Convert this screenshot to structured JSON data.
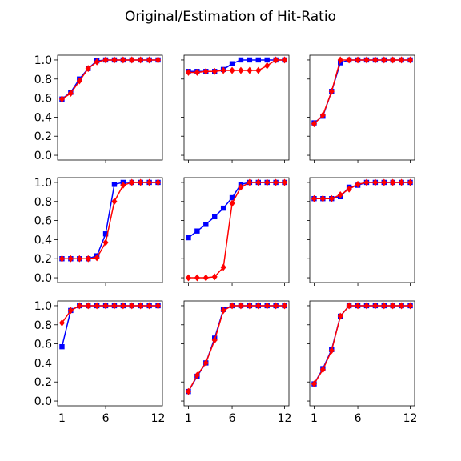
{
  "figure": {
    "title": "Original/Estimation of Hit-Ratio"
  },
  "chart_data": {
    "type": "line",
    "title": "Original/Estimation of Hit-Ratio",
    "x": [
      1,
      2,
      3,
      4,
      5,
      6,
      7,
      8,
      9,
      10,
      11,
      12
    ],
    "xlim": [
      0.5,
      12.5
    ],
    "ylim": [
      -0.05,
      1.05
    ],
    "xticks": [
      1,
      6,
      12
    ],
    "yticks": [
      0.0,
      0.2,
      0.4,
      0.6,
      0.8,
      1.0
    ],
    "ytick_labels": [
      "0.0",
      "0.2",
      "0.4",
      "0.6",
      "0.8",
      "1.0"
    ],
    "grid": false,
    "layout": "3x3 grid, shared axes",
    "series_styles": {
      "original": {
        "color": "#0000ff",
        "marker": "square"
      },
      "estimation": {
        "color": "#ff0000",
        "marker": "diamond"
      }
    },
    "panels": [
      {
        "original": [
          0.59,
          0.66,
          0.8,
          0.91,
          0.99,
          1,
          1,
          1,
          1,
          1,
          1,
          1
        ],
        "estimation": [
          0.59,
          0.65,
          0.78,
          0.91,
          0.98,
          1,
          1,
          1,
          1,
          1,
          1,
          1
        ]
      },
      {
        "original": [
          0.88,
          0.88,
          0.88,
          0.88,
          0.9,
          0.96,
          1,
          1,
          1,
          1,
          1,
          1
        ],
        "estimation": [
          0.87,
          0.87,
          0.88,
          0.88,
          0.89,
          0.89,
          0.89,
          0.89,
          0.89,
          0.94,
          1,
          1
        ]
      },
      {
        "original": [
          0.34,
          0.41,
          0.67,
          0.97,
          1,
          1,
          1,
          1,
          1,
          1,
          1,
          1
        ],
        "estimation": [
          0.33,
          0.42,
          0.67,
          1,
          1,
          1,
          1,
          1,
          1,
          1,
          1,
          1
        ]
      },
      {
        "original": [
          0.2,
          0.2,
          0.2,
          0.2,
          0.23,
          0.46,
          0.98,
          1,
          1,
          1,
          1,
          1
        ],
        "estimation": [
          0.2,
          0.2,
          0.2,
          0.2,
          0.21,
          0.37,
          0.8,
          0.97,
          1,
          1,
          1,
          1
        ]
      },
      {
        "original": [
          0.42,
          0.49,
          0.56,
          0.64,
          0.73,
          0.84,
          0.98,
          1,
          1,
          1,
          1,
          1
        ],
        "estimation": [
          0.0,
          0.0,
          0.0,
          0.01,
          0.11,
          0.78,
          0.95,
          1,
          1,
          1,
          1,
          1
        ]
      },
      {
        "original": [
          0.83,
          0.83,
          0.83,
          0.85,
          0.95,
          0.97,
          1,
          1,
          1,
          1,
          1,
          1
        ],
        "estimation": [
          0.83,
          0.83,
          0.83,
          0.87,
          0.93,
          0.98,
          1,
          1,
          1,
          1,
          1,
          1
        ]
      },
      {
        "original": [
          0.57,
          0.95,
          1,
          1,
          1,
          1,
          1,
          1,
          1,
          1,
          1,
          1
        ],
        "estimation": [
          0.82,
          0.95,
          1,
          1,
          1,
          1,
          1,
          1,
          1,
          1,
          1,
          1
        ]
      },
      {
        "original": [
          0.1,
          0.26,
          0.4,
          0.66,
          0.96,
          1,
          1,
          1,
          1,
          1,
          1,
          1
        ],
        "estimation": [
          0.1,
          0.27,
          0.4,
          0.64,
          0.95,
          1,
          1,
          1,
          1,
          1,
          1,
          1
        ]
      },
      {
        "original": [
          0.18,
          0.34,
          0.54,
          0.89,
          1,
          1,
          1,
          1,
          1,
          1,
          1,
          1
        ],
        "estimation": [
          0.18,
          0.33,
          0.53,
          0.89,
          1,
          1,
          1,
          1,
          1,
          1,
          1,
          1
        ]
      }
    ]
  }
}
